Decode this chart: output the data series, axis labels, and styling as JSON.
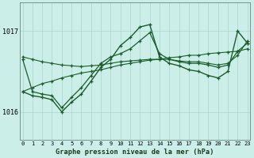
{
  "title": "Graphe pression niveau de la mer (hPa)",
  "bg_color": "#cceee8",
  "grid_color": "#aad4cc",
  "line_color": "#1a5c2a",
  "x_ticks": [
    0,
    1,
    2,
    3,
    4,
    5,
    6,
    7,
    8,
    9,
    10,
    11,
    12,
    13,
    14,
    15,
    16,
    17,
    18,
    19,
    20,
    21,
    22,
    23
  ],
  "ylim": [
    1015.65,
    1017.35
  ],
  "yticks": [
    1016,
    1017
  ],
  "series": [
    [
      1016.25,
      1016.3,
      1016.35,
      1016.38,
      1016.42,
      1016.45,
      1016.48,
      1016.5,
      1016.52,
      1016.55,
      1016.58,
      1016.6,
      1016.62,
      1016.64,
      1016.65,
      1016.67,
      1016.68,
      1016.7,
      1016.7,
      1016.72,
      1016.73,
      1016.74,
      1016.75,
      1016.78
    ],
    [
      1016.68,
      1016.65,
      1016.62,
      1016.6,
      1016.58,
      1016.57,
      1016.56,
      1016.57,
      1016.58,
      1016.6,
      1016.62,
      1016.63,
      1016.64,
      1016.65,
      1016.65,
      1016.65,
      1016.63,
      1016.62,
      1016.62,
      1016.6,
      1016.58,
      1016.6,
      1016.7,
      1016.88
    ],
    [
      1016.65,
      1016.25,
      1016.22,
      1016.2,
      1016.05,
      1016.18,
      1016.3,
      1016.45,
      1016.6,
      1016.68,
      1016.72,
      1016.78,
      1016.88,
      1016.98,
      1016.72,
      1016.65,
      1016.62,
      1016.6,
      1016.6,
      1016.58,
      1016.55,
      1016.58,
      1016.75,
      1016.85
    ],
    [
      1016.25,
      1016.2,
      1016.18,
      1016.15,
      1016.0,
      1016.12,
      1016.22,
      1016.38,
      1016.55,
      1016.65,
      1016.82,
      1016.92,
      1017.05,
      1017.08,
      1016.68,
      1016.6,
      1016.57,
      1016.52,
      1016.5,
      1016.45,
      1016.42,
      1016.5,
      1017.0,
      1016.85
    ]
  ]
}
